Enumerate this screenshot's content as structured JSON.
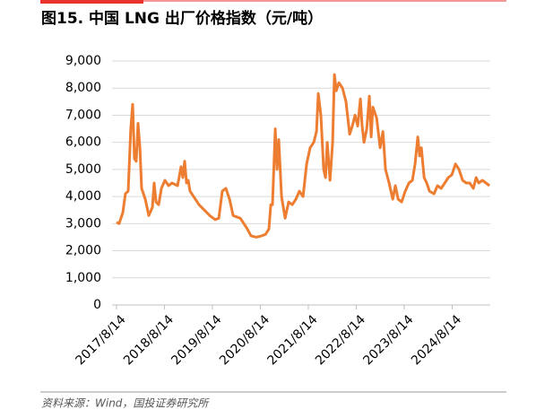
{
  "chart_data": {
    "type": "line",
    "title": "图15. 中国 LNG 出厂价格指数（元/吨）",
    "source": "资料来源：Wind，国投证券研究所",
    "x": [
      "2017/8/14",
      "2017/9/3",
      "2017/10/1",
      "2017/10/21",
      "2017/11/11",
      "2017/12/1",
      "2017/12/15",
      "2017/12/29",
      "2018/1/11",
      "2018/1/25",
      "2018/2/8",
      "2018/2/21",
      "2018/3/21",
      "2018/4/17",
      "2018/5/14",
      "2018/5/28",
      "2018/6/11",
      "2018/7/1",
      "2018/7/22",
      "2018/8/18",
      "2018/9/14",
      "2018/10/11",
      "2018/11/22",
      "2018/12/19",
      "2019/1/1",
      "2019/1/15",
      "2019/1/29",
      "2019/2/11",
      "2019/2/25",
      "2019/3/24",
      "2019/5/4",
      "2019/6/14",
      "2019/7/25",
      "2019/9/4",
      "2019/10/2",
      "2019/10/29",
      "2019/11/25",
      "2019/12/23",
      "2020/1/19",
      "2020/2/15",
      "2020/3/14",
      "2020/4/10",
      "2020/5/7",
      "2020/6/3",
      "2020/7/14",
      "2020/8/24",
      "2020/9/21",
      "2020/10/18",
      "2020/11/1",
      "2020/11/14",
      "2020/12/5",
      "2020/12/19",
      "2021/1/1",
      "2021/1/22",
      "2021/2/18",
      "2021/3/17",
      "2021/4/14",
      "2021/5/11",
      "2021/6/7",
      "2021/7/5",
      "2021/8/1",
      "2021/8/28",
      "2021/9/25",
      "2021/10/15",
      "2021/10/29",
      "2021/11/18",
      "2021/12/9",
      "2021/12/23",
      "2022/1/5",
      "2022/1/26",
      "2022/2/15",
      "2022/3/1",
      "2022/3/15",
      "2022/4/4",
      "2022/5/1",
      "2022/5/28",
      "2022/6/25",
      "2022/7/15",
      "2022/8/5",
      "2022/8/25",
      "2022/9/15",
      "2022/9/28",
      "2022/10/12",
      "2022/11/2",
      "2022/11/22",
      "2022/12/6",
      "2022/12/19",
      "2023/1/16",
      "2023/2/12",
      "2023/3/5",
      "2023/3/25",
      "2023/4/21",
      "2023/5/19",
      "2023/6/8",
      "2023/6/29",
      "2023/7/26",
      "2023/8/22",
      "2023/9/19",
      "2023/10/16",
      "2023/11/5",
      "2023/11/26",
      "2023/12/10",
      "2023/12/23",
      "2024/1/13",
      "2024/2/2",
      "2024/2/23",
      "2024/3/28",
      "2024/4/24",
      "2024/5/22",
      "2024/6/18",
      "2024/7/15",
      "2024/8/11",
      "2024/9/8",
      "2024/10/5",
      "2024/11/1",
      "2024/11/29",
      "2024/12/26",
      "2025/1/22",
      "2025/2/12",
      "2025/3/4",
      "2025/4/1",
      "2025/4/28",
      "2025/5/25"
    ],
    "series": [
      {
        "color": "#ed7d31",
        "values": [
          3050,
          3000,
          3400,
          4100,
          4200,
          6500,
          7400,
          5400,
          5300,
          6700,
          5800,
          4300,
          3900,
          3300,
          3600,
          4500,
          3800,
          3700,
          4300,
          4600,
          4400,
          4500,
          4400,
          5100,
          4700,
          5300,
          4500,
          4600,
          4200,
          4000,
          3700,
          3500,
          3300,
          3150,
          3200,
          4200,
          4300,
          3900,
          3300,
          3250,
          3200,
          3000,
          2800,
          2550,
          2500,
          2550,
          2600,
          2800,
          3700,
          3700,
          6500,
          5000,
          6100,
          4000,
          3200,
          3800,
          3700,
          3900,
          4200,
          4000,
          5200,
          5800,
          6000,
          6400,
          7800,
          7000,
          5000,
          4700,
          6000,
          4600,
          6000,
          8500,
          7900,
          8200,
          8000,
          7500,
          6300,
          6600,
          7000,
          6600,
          7600,
          6600,
          6000,
          6500,
          7700,
          6200,
          7300,
          6900,
          5800,
          6400,
          5000,
          4500,
          3900,
          4400,
          3900,
          3800,
          4200,
          4500,
          4600,
          5200,
          6200,
          5500,
          5800,
          4700,
          4500,
          4200,
          4100,
          4400,
          4300,
          4500,
          4700,
          4800,
          5200,
          5000,
          4600,
          4500,
          4500,
          4300,
          4700,
          4500,
          4600,
          4500,
          4400
        ]
      }
    ],
    "xlim": [
      "2017/7/11",
      "2025/5/31"
    ],
    "xticks": [
      "2017/8/14",
      "2018/8/14",
      "2019/8/14",
      "2020/8/14",
      "2021/8/14",
      "2022/8/14",
      "2023/8/14",
      "2024/8/14"
    ],
    "ylim": [
      0,
      9000
    ],
    "yticks": [
      0,
      {
        "value": 1000,
        "label": "1,000"
      },
      {
        "value": 2000,
        "label": "2,000"
      },
      {
        "value": 3000,
        "label": "3,000"
      },
      {
        "value": 4000,
        "label": "4,000"
      },
      {
        "value": 5000,
        "label": "5,000"
      },
      {
        "value": 6000,
        "label": "6,000"
      },
      {
        "value": 7000,
        "label": "7,000"
      },
      {
        "value": 8000,
        "label": "8,000"
      },
      {
        "value": 9000,
        "label": "9,000"
      }
    ],
    "grid": true
  }
}
